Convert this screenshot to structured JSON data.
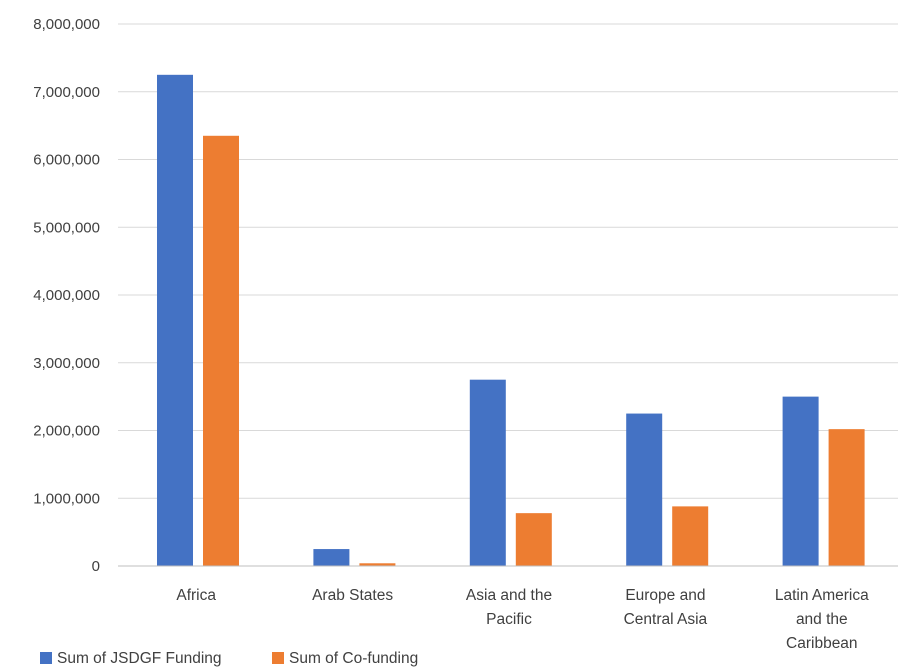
{
  "chart_data": {
    "type": "bar",
    "title": "",
    "xlabel": "",
    "ylabel": "",
    "ylim": [
      0,
      8000000
    ],
    "yticks": [
      0,
      1000000,
      2000000,
      3000000,
      4000000,
      5000000,
      6000000,
      7000000,
      8000000
    ],
    "ytick_labels": [
      "0",
      "1,000,000",
      "2,000,000",
      "3,000,000",
      "4,000,000",
      "5,000,000",
      "6,000,000",
      "7,000,000",
      "8,000,000"
    ],
    "categories": [
      [
        "Africa"
      ],
      [
        "Arab States"
      ],
      [
        "Asia and the",
        "Pacific"
      ],
      [
        "Europe and",
        "Central Asia"
      ],
      [
        "Latin America",
        "and the",
        "Caribbean"
      ]
    ],
    "series": [
      {
        "name": "Sum of JSDGF Funding",
        "color": "#4472c4",
        "values": [
          7250000,
          250000,
          2750000,
          2250000,
          2500000
        ]
      },
      {
        "name": "Sum of Co-funding",
        "color": "#ed7d31",
        "values": [
          6350000,
          40000,
          780000,
          880000,
          2020000
        ]
      }
    ],
    "grid": true,
    "legend_position": "bottom-left"
  }
}
